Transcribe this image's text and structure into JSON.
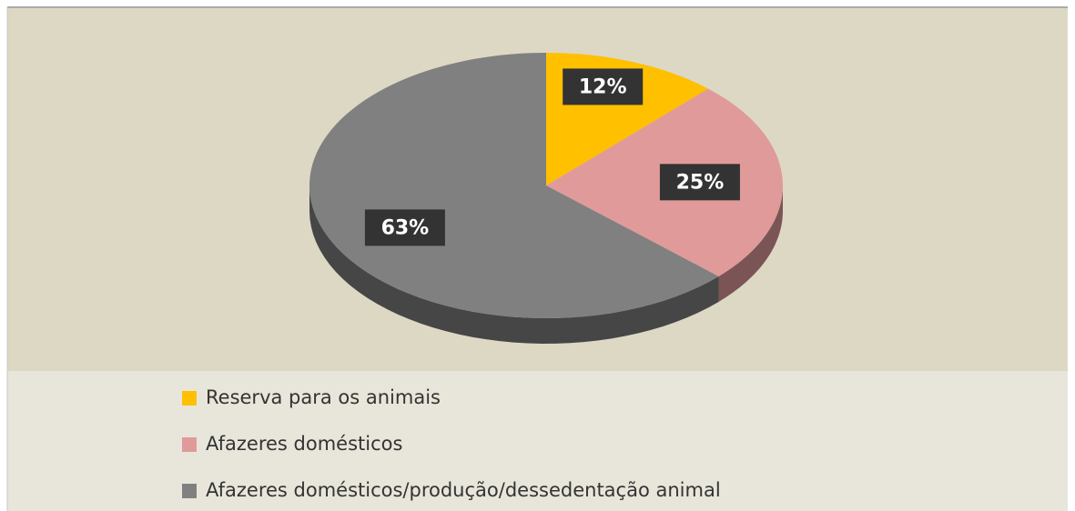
{
  "chart_data": {
    "type": "pie",
    "categories": [
      "Reserva para os animais",
      "Afazeres domésticos",
      "Afazeres domésticos/produção/dessedentação animal"
    ],
    "values": [
      12,
      25,
      63
    ],
    "value_labels": [
      "12%",
      "25%",
      "63%"
    ],
    "colors": [
      "#ffc000",
      "#e09a9a",
      "#808080"
    ],
    "legend": "bottom"
  }
}
